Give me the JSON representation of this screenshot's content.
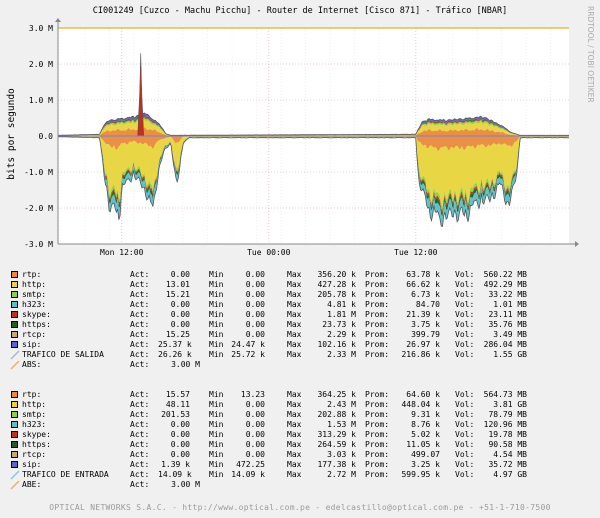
{
  "chart_data": {
    "type": "area",
    "title": "CI001249 [Cuzco - Machu Picchu] - Router de Internet [Cisco 871] - Tráfico [NBAR]",
    "ylabel": "bits por segundo",
    "watermark": "RRDTOOL / TOBI OETIKER",
    "y_ticks": [
      "3.0 M",
      "2.0 M",
      "1.0 M",
      "0.0",
      "-1.0 M",
      "-2.0 M",
      "-3.0 M"
    ],
    "y_values": [
      3000000,
      2000000,
      1000000,
      0,
      -1000000,
      -2000000,
      -3000000
    ],
    "ylim": [
      -3000000,
      3000000
    ],
    "x_ticks": [
      "Mon 12:00",
      "Tue 00:00",
      "Tue 12:00"
    ],
    "x_tick_positions_hours": [
      12,
      24,
      36
    ],
    "xlim_hours": [
      6.8,
      48.5
    ],
    "abs_line": 3000000,
    "grid": true,
    "series_colors": {
      "https": "#1e5e1e",
      "sip": "#6060d0",
      "rtcp": "#c9a86b",
      "h323": "#5abfc8",
      "smtp": "#8fd13a",
      "http": "#e8d43a",
      "rtp": "#e88a3a",
      "skype": "#c03020",
      "total": "#555555"
    },
    "sections": [
      {
        "items": [
          {
            "name": "rtp:",
            "act": "0.00",
            "min": "0.00",
            "max": "356.20 k",
            "avg": "63.78 k",
            "vol": "560.22 MB",
            "color": "#e88a3a"
          },
          {
            "name": "http:",
            "act": "13.01",
            "min": "0.00",
            "max": "427.28 k",
            "avg": "66.62 k",
            "vol": "492.29 MB",
            "color": "#e8d43a"
          },
          {
            "name": "smtp:",
            "act": "15.21",
            "min": "0.00",
            "max": "205.78 k",
            "avg": "6.73 k",
            "vol": "33.22 MB",
            "color": "#8fd13a"
          },
          {
            "name": "h323:",
            "act": "0.00",
            "min": "0.00",
            "max": "4.81 k",
            "avg": "84.70",
            "vol": "1.01 MB",
            "color": "#5abfc8"
          },
          {
            "name": "skype:",
            "act": "0.00",
            "min": "0.00",
            "max": "1.81 M",
            "avg": "21.39 k",
            "vol": "23.11 MB",
            "color": "#c03020"
          },
          {
            "name": "https:",
            "act": "0.00",
            "min": "0.00",
            "max": "23.73 k",
            "avg": "3.75 k",
            "vol": "35.76 MB",
            "color": "#1e5e1e"
          },
          {
            "name": "rtcp:",
            "act": "15.25",
            "min": "0.00",
            "max": "2.29 k",
            "avg": "399.79",
            "vol": "3.49 MB",
            "color": "#c9a86b"
          },
          {
            "name": "sip:",
            "act": "25.37 k",
            "min": "24.47 k",
            "max": "102.16 k",
            "avg": "26.97 k",
            "vol": "286.04 MB",
            "color": "#6060d0"
          }
        ],
        "total": {
          "name": "TRAFICO DE SALIDA",
          "act": "26.26 k",
          "min": "25.72 k",
          "max": "2.33 M",
          "avg": "216.86 k",
          "vol": "1.55 GB",
          "color": "#b0b0e0"
        },
        "abs": {
          "name": "ABS:",
          "value": "3.00 M",
          "color": "#f0b060"
        }
      },
      {
        "items": [
          {
            "name": "rtp:",
            "act": "15.57",
            "min": "13.23",
            "max": "364.25 k",
            "avg": "64.60 k",
            "vol": "564.73 MB",
            "color": "#e88a3a"
          },
          {
            "name": "http:",
            "act": "48.11",
            "min": "0.00",
            "max": "2.43 M",
            "avg": "448.04 k",
            "vol": "3.81 GB",
            "color": "#e8d43a"
          },
          {
            "name": "smtp:",
            "act": "201.53",
            "min": "0.00",
            "max": "202.88 k",
            "avg": "9.31 k",
            "vol": "78.79 MB",
            "color": "#8fd13a"
          },
          {
            "name": "h323:",
            "act": "0.00",
            "min": "0.00",
            "max": "1.53 M",
            "avg": "8.76 k",
            "vol": "120.96 MB",
            "color": "#5abfc8"
          },
          {
            "name": "skype:",
            "act": "0.00",
            "min": "0.00",
            "max": "313.29 k",
            "avg": "5.02 k",
            "vol": "19.78 MB",
            "color": "#c03020"
          },
          {
            "name": "https:",
            "act": "0.00",
            "min": "0.00",
            "max": "264.59 k",
            "avg": "11.05 k",
            "vol": "90.58 MB",
            "color": "#1e5e1e"
          },
          {
            "name": "rtcp:",
            "act": "0.00",
            "min": "0.00",
            "max": "3.03 k",
            "avg": "499.07",
            "vol": "4.54 MB",
            "color": "#c9a86b"
          },
          {
            "name": "sip:",
            "act": "1.39 k",
            "min": "472.25",
            "max": "177.38 k",
            "avg": "3.25 k",
            "vol": "35.72 MB",
            "color": "#6060d0"
          }
        ],
        "total": {
          "name": "TRAFICO DE ENTRADA",
          "act": "14.09 k",
          "min": "14.09 k",
          "max": "2.72 M",
          "avg": "599.95 k",
          "vol": "4.97 GB",
          "color": "#80c8f0"
        },
        "abs": {
          "name": "ABE:",
          "value": "3.00 M",
          "color": "#f0b060"
        }
      }
    ],
    "labels": {
      "act": "Act:",
      "min": "Min",
      "max": "Max",
      "avg": "Prom:",
      "vol": "Vol:"
    },
    "footer": "OPTICAL NETWORKS S.A.C. - http://www.optical.com.pe - edelcastillo@optical.com.pe - +51-1-710-7500"
  }
}
